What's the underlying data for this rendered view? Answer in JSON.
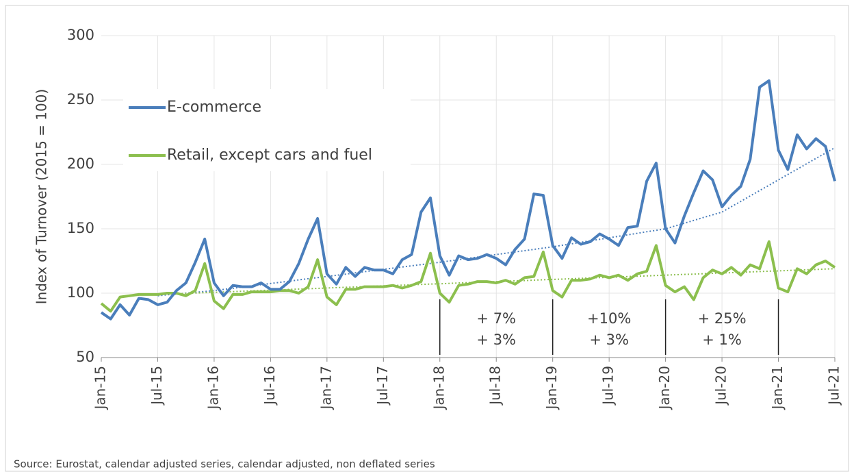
{
  "chart_data": {
    "type": "line",
    "y_label": "Index of Turnover (2015 = 100)",
    "source": "Source: Eurostat, calendar adjusted series, calendar adjusted, non deflated series",
    "categories": [
      "Jan-15",
      null,
      null,
      null,
      null,
      null,
      "Jul-15",
      null,
      null,
      null,
      null,
      null,
      "Jan-16",
      null,
      null,
      null,
      null,
      null,
      "Jul-16",
      null,
      null,
      null,
      null,
      null,
      "Jan-17",
      null,
      null,
      null,
      null,
      null,
      "Jul-17",
      null,
      null,
      null,
      null,
      null,
      "Jan-18",
      null,
      null,
      null,
      null,
      null,
      "Jul-18",
      null,
      null,
      null,
      null,
      null,
      "Jan-19",
      null,
      null,
      null,
      null,
      null,
      "Jul-19",
      null,
      null,
      null,
      null,
      null,
      "Jan-20",
      null,
      null,
      null,
      null,
      null,
      "Jul-20",
      null,
      null,
      null,
      null,
      null,
      "Jan-21",
      null,
      null,
      null,
      null,
      null,
      "Jul-21"
    ],
    "series": [
      {
        "name": "E-commerce",
        "color": "#4a7ebb",
        "values": [
          85,
          80,
          91,
          83,
          96,
          95,
          91,
          93,
          102,
          108,
          124,
          142,
          108,
          98,
          106,
          105,
          105,
          108,
          103,
          103,
          109,
          123,
          142,
          158,
          115,
          107,
          120,
          113,
          120,
          118,
          118,
          115,
          126,
          130,
          163,
          174,
          129,
          114,
          129,
          126,
          127,
          130,
          127,
          122,
          134,
          142,
          177,
          176,
          137,
          127,
          143,
          138,
          140,
          146,
          142,
          137,
          151,
          152,
          187,
          201,
          150,
          139,
          160,
          178,
          195,
          188,
          167,
          176,
          183,
          204,
          260,
          265,
          211,
          196,
          223,
          212,
          220,
          214,
          187
        ]
      },
      {
        "name": "Retail, except cars and fuel",
        "color": "#8cbf4e",
        "values": [
          92,
          86,
          97,
          98,
          99,
          99,
          99,
          100,
          100,
          98,
          102,
          123,
          94,
          88,
          99,
          99,
          101,
          101,
          101,
          102,
          102,
          100,
          105,
          126,
          97,
          91,
          103,
          103,
          105,
          105,
          105,
          106,
          104,
          106,
          109,
          131,
          100,
          93,
          106,
          107,
          109,
          109,
          108,
          110,
          107,
          112,
          113,
          132,
          102,
          97,
          110,
          110,
          111,
          114,
          112,
          114,
          110,
          115,
          117,
          137,
          106,
          101,
          105,
          95,
          112,
          118,
          115,
          120,
          114,
          122,
          119,
          140,
          104,
          101,
          119,
          115,
          122,
          125,
          120
        ]
      }
    ],
    "trends": [
      {
        "color": "#4a7ebb",
        "values": [
          null,
          null,
          null,
          null,
          null,
          null,
          98,
          98.7,
          99.3,
          100,
          100.7,
          101.3,
          102,
          102.9,
          103.8,
          104.8,
          105.7,
          106.6,
          107.5,
          108.4,
          109.3,
          110.3,
          111.2,
          112.1,
          113,
          113.9,
          114.8,
          115.8,
          116.7,
          117.6,
          118.5,
          119.4,
          120.3,
          121.3,
          122.2,
          123.1,
          124,
          125,
          126,
          127,
          128,
          129,
          130,
          131,
          132,
          133,
          134,
          135,
          136,
          137.2,
          138.3,
          139.5,
          140.7,
          141.8,
          143,
          144.2,
          145.3,
          146.5,
          147.7,
          148.8,
          150,
          152.2,
          154.3,
          156.5,
          158.7,
          160.8,
          163,
          167.2,
          171.3,
          175.5,
          179.7,
          183.8,
          188,
          192.2,
          196.3,
          200.5,
          204.7,
          208.8,
          213
        ]
      },
      {
        "color": "#8cbf4e",
        "values": [
          null,
          null,
          null,
          null,
          null,
          null,
          99,
          99.3,
          99.6,
          99.8,
          100.1,
          100.4,
          100.7,
          100.9,
          101.2,
          101.5,
          101.8,
          102.1,
          102.3,
          102.6,
          102.9,
          103.2,
          103.4,
          103.7,
          104,
          104.3,
          104.6,
          104.8,
          105.1,
          105.4,
          105.7,
          105.9,
          106.2,
          106.5,
          106.8,
          107.1,
          107.3,
          107.6,
          107.9,
          108.2,
          108.4,
          108.7,
          109,
          109.3,
          109.6,
          109.8,
          110.1,
          110.4,
          110.7,
          110.9,
          111.2,
          111.5,
          111.8,
          112.1,
          112.3,
          112.6,
          112.9,
          113.2,
          113.4,
          113.7,
          114,
          114.3,
          114.6,
          114.8,
          115.1,
          115.4,
          115.7,
          115.9,
          116.2,
          116.5,
          116.8,
          117.1,
          117.3,
          117.6,
          117.9,
          118.2,
          118.4,
          118.7,
          119
        ]
      }
    ],
    "annotations": [
      [
        "+ 7%",
        "+ 3%"
      ],
      [
        "+10%",
        "+ 3%"
      ],
      [
        "+ 25%",
        "+ 1%"
      ]
    ],
    "ylim": [
      50,
      300
    ],
    "yticks": [
      50,
      100,
      150,
      200,
      250,
      300
    ],
    "grid": true,
    "legend": "upper left"
  }
}
